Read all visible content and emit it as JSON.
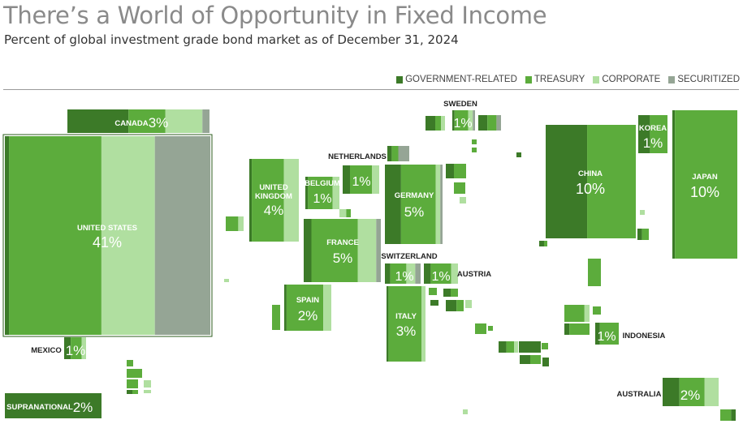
{
  "title": "There’s a World of Opportunity in Fixed Income",
  "subtitle": "Percent of global investment grade bond market as of December 31, 2024",
  "colors": {
    "government_related": "#3c7a28",
    "treasury": "#5cac3c",
    "corporate": "#b0dfa0",
    "securitized": "#95a595"
  },
  "chart_data": {
    "type": "treemap-map",
    "legend_placement": "top-right",
    "legend": [
      {
        "key": "government_related",
        "label": "GOVERNMENT-RELATED"
      },
      {
        "key": "treasury",
        "label": "TREASURY"
      },
      {
        "key": "corporate",
        "label": "CORPORATE"
      },
      {
        "key": "securitized",
        "label": "SECURITIZED"
      }
    ],
    "countries": [
      {
        "id": "canada",
        "name": "CANADA",
        "value": 3,
        "pct": "3%"
      },
      {
        "id": "united-states",
        "name": "UNITED STATES",
        "value": 41,
        "pct": "41%"
      },
      {
        "id": "mexico",
        "name": "MEXICO",
        "value": 1,
        "pct": "1%"
      },
      {
        "id": "supranational",
        "name": "SUPRANATIONAL",
        "value": 2,
        "pct": "2%"
      },
      {
        "id": "united-kingdom",
        "name": "UNITED KINGDOM",
        "value": 4,
        "pct": "4%"
      },
      {
        "id": "belgium",
        "name": "BELGIUM",
        "value": 1,
        "pct": "1%"
      },
      {
        "id": "netherlands",
        "name": "NETHERLANDS",
        "value": 1,
        "pct": "1%"
      },
      {
        "id": "sweden",
        "name": "SWEDEN",
        "value": 1,
        "pct": "1%"
      },
      {
        "id": "germany",
        "name": "GERMANY",
        "value": 5,
        "pct": "5%"
      },
      {
        "id": "france",
        "name": "FRANCE",
        "value": 5,
        "pct": "5%"
      },
      {
        "id": "switzerland",
        "name": "SWITZERLAND",
        "value": 1,
        "pct": "1%"
      },
      {
        "id": "austria",
        "name": "AUSTRIA",
        "value": 1,
        "pct": "1%"
      },
      {
        "id": "spain",
        "name": "SPAIN",
        "value": 2,
        "pct": "2%"
      },
      {
        "id": "italy",
        "name": "ITALY",
        "value": 3,
        "pct": "3%"
      },
      {
        "id": "china",
        "name": "CHINA",
        "value": 10,
        "pct": "10%"
      },
      {
        "id": "korea",
        "name": "KOREA",
        "value": 1,
        "pct": "1%"
      },
      {
        "id": "japan",
        "name": "JAPAN",
        "value": 10,
        "pct": "10%"
      },
      {
        "id": "indonesia",
        "name": "INDONESIA",
        "value": 1,
        "pct": "1%"
      },
      {
        "id": "australia",
        "name": "AUSTRALIA",
        "value": 2,
        "pct": "2%"
      }
    ]
  }
}
